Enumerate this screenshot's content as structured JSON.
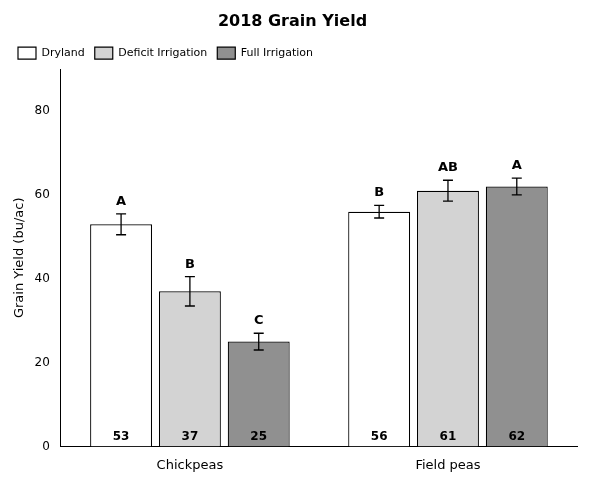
{
  "chart_data": {
    "type": "bar",
    "title": "2018 Grain Yield",
    "ylabel": "Grain Yield (bu/ac)",
    "categories": [
      "Chickpeas",
      "Field peas"
    ],
    "series": [
      {
        "name": "Dryland",
        "color": "#ffffff",
        "values": [
          53,
          56
        ],
        "errors": [
          2.5,
          1.5
        ],
        "significance": [
          "A",
          "B"
        ]
      },
      {
        "name": "Deficit Irrigation",
        "color": "#d3d3d3",
        "values": [
          37,
          61
        ],
        "errors": [
          3.5,
          2.5
        ],
        "significance": [
          "B",
          "AB"
        ]
      },
      {
        "name": "Full Irrigation",
        "color": "#909090",
        "values": [
          25,
          62
        ],
        "errors": [
          2.0,
          2.0
        ],
        "significance": [
          "C",
          "A"
        ]
      }
    ],
    "ylim": [
      0,
      90
    ],
    "yticks": [
      0,
      20,
      40,
      60,
      80
    ],
    "grid": false,
    "legend": "upper left",
    "data_labels": true
  }
}
